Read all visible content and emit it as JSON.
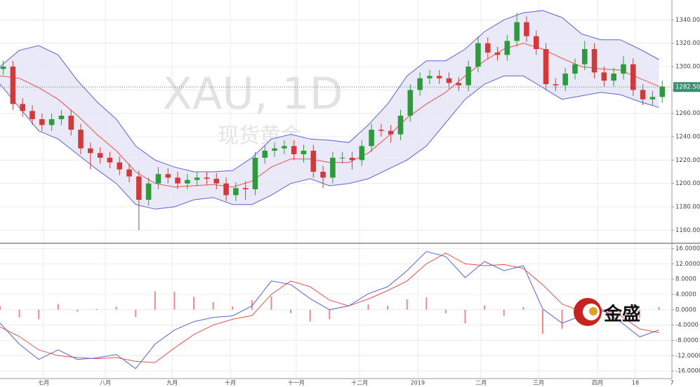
{
  "chart_data": [
    {
      "type": "candlestick",
      "title": "XAU, 1D",
      "subtitle": "现货黄金",
      "x": [
        1,
        4,
        7,
        10,
        13,
        16,
        19,
        22,
        25,
        28,
        31,
        34,
        37,
        40,
        43,
        46,
        49,
        52,
        55,
        58,
        61,
        64,
        67,
        70,
        73,
        76,
        79,
        82,
        85,
        88,
        91,
        94,
        97,
        100,
        103,
        106,
        109,
        112,
        115,
        118,
        121,
        124,
        127,
        130,
        133,
        136,
        139,
        142,
        145,
        148,
        151,
        154,
        157,
        160,
        163,
        166,
        169,
        172,
        175,
        178,
        181,
        184,
        187,
        190,
        193,
        196,
        199,
        202,
        205
      ],
      "open": [
        1298,
        1300,
        1268,
        1262,
        1255,
        1250,
        1255,
        1258,
        1246,
        1230,
        1226,
        1222,
        1218,
        1212,
        1206,
        1186,
        1200,
        1208,
        1205,
        1200,
        1203,
        1205,
        1204,
        1200,
        1190,
        1196,
        1195,
        1222,
        1228,
        1230,
        1232,
        1225,
        1228,
        1210,
        1205,
        1222,
        1222,
        1220,
        1232,
        1246,
        1245,
        1242,
        1258,
        1280,
        1290,
        1292,
        1290,
        1286,
        1284,
        1300,
        1320,
        1312,
        1310,
        1322,
        1338,
        1326,
        1315,
        1285,
        1284,
        1294,
        1302,
        1315,
        1295,
        1288,
        1294,
        1302,
        1280,
        1272,
        1274
      ],
      "high": [
        1305,
        1305,
        1273,
        1267,
        1260,
        1260,
        1263,
        1263,
        1251,
        1235,
        1231,
        1227,
        1223,
        1217,
        1211,
        1205,
        1214,
        1213,
        1210,
        1208,
        1210,
        1210,
        1209,
        1205,
        1201,
        1202,
        1227,
        1233,
        1235,
        1237,
        1237,
        1233,
        1233,
        1215,
        1227,
        1227,
        1227,
        1237,
        1251,
        1251,
        1250,
        1263,
        1285,
        1295,
        1297,
        1297,
        1295,
        1291,
        1305,
        1326,
        1325,
        1317,
        1327,
        1346,
        1343,
        1331,
        1320,
        1290,
        1299,
        1307,
        1322,
        1320,
        1300,
        1299,
        1309,
        1307,
        1285,
        1279,
        1288
      ],
      "low": [
        1293,
        1263,
        1257,
        1250,
        1245,
        1245,
        1250,
        1241,
        1225,
        1212,
        1217,
        1213,
        1207,
        1201,
        1160,
        1181,
        1195,
        1200,
        1195,
        1195,
        1198,
        1199,
        1195,
        1185,
        1185,
        1186,
        1190,
        1217,
        1223,
        1225,
        1220,
        1218,
        1205,
        1196,
        1200,
        1217,
        1212,
        1215,
        1227,
        1240,
        1235,
        1237,
        1253,
        1275,
        1285,
        1285,
        1281,
        1279,
        1279,
        1295,
        1307,
        1305,
        1305,
        1317,
        1321,
        1310,
        1280,
        1279,
        1279,
        1289,
        1297,
        1290,
        1283,
        1283,
        1289,
        1275,
        1267,
        1267,
        1269
      ],
      "close": [
        1300,
        1268,
        1262,
        1255,
        1250,
        1255,
        1258,
        1246,
        1230,
        1226,
        1222,
        1218,
        1212,
        1206,
        1186,
        1200,
        1208,
        1205,
        1200,
        1203,
        1205,
        1204,
        1200,
        1190,
        1196,
        1195,
        1222,
        1228,
        1230,
        1232,
        1225,
        1228,
        1210,
        1205,
        1222,
        1222,
        1220,
        1232,
        1246,
        1245,
        1242,
        1258,
        1280,
        1290,
        1292,
        1290,
        1286,
        1284,
        1300,
        1320,
        1312,
        1310,
        1322,
        1338,
        1326,
        1315,
        1285,
        1284,
        1294,
        1302,
        1315,
        1295,
        1288,
        1294,
        1302,
        1280,
        1272,
        1274,
        1283
      ],
      "up_color": "#2e9a3e",
      "down_color": "#d23a3a",
      "bands": {
        "x": [
          0,
          6,
          12,
          18,
          24,
          30,
          36,
          42,
          48,
          54,
          60,
          66,
          72,
          78,
          84,
          90,
          96,
          102,
          108,
          114,
          120,
          126,
          132,
          138,
          144,
          150,
          156,
          162,
          168,
          174,
          180,
          186,
          192,
          198,
          204
        ],
        "upper": [
          1300,
          1314,
          1318,
          1310,
          1288,
          1270,
          1255,
          1232,
          1220,
          1214,
          1210,
          1210,
          1211,
          1222,
          1238,
          1242,
          1238,
          1237,
          1235,
          1250,
          1268,
          1292,
          1305,
          1305,
          1315,
          1330,
          1340,
          1346,
          1348,
          1342,
          1328,
          1323,
          1323,
          1315,
          1306
        ],
        "middle": [
          1292,
          1290,
          1282,
          1272,
          1258,
          1242,
          1228,
          1210,
          1200,
          1197,
          1198,
          1199,
          1197,
          1202,
          1214,
          1221,
          1221,
          1218,
          1218,
          1226,
          1240,
          1256,
          1268,
          1278,
          1292,
          1305,
          1315,
          1320,
          1315,
          1307,
          1300,
          1298,
          1297,
          1290,
          1283
        ],
        "lower": [
          1285,
          1265,
          1245,
          1238,
          1225,
          1212,
          1200,
          1182,
          1178,
          1180,
          1186,
          1188,
          1182,
          1182,
          1190,
          1200,
          1204,
          1198,
          1200,
          1204,
          1212,
          1220,
          1232,
          1252,
          1272,
          1285,
          1292,
          1292,
          1282,
          1272,
          1275,
          1278,
          1276,
          1270,
          1265
        ],
        "band_color": "#5b63d6",
        "fill_color": "#e3e4f6",
        "middle_color": "#e8504a"
      },
      "last_price": {
        "value": 1282.5,
        "label": "1282.50"
      },
      "last_price_color": "#3d8f74",
      "xlim": [
        0,
        208
      ],
      "ylim": [
        1150,
        1357
      ],
      "yticks": [
        {
          "value": 1160,
          "label": "1160.00"
        },
        {
          "value": 1180,
          "label": "1180.00"
        },
        {
          "value": 1200,
          "label": "1200.00"
        },
        {
          "value": 1220,
          "label": "1220.00"
        },
        {
          "value": 1240,
          "label": "1240.00"
        },
        {
          "value": 1260,
          "label": "1260.00"
        },
        {
          "value": 1280,
          "label": "1280.00"
        },
        {
          "value": 1300,
          "label": "1300.00"
        },
        {
          "value": 1320,
          "label": "1320.00"
        },
        {
          "value": 1340,
          "label": "1340.00"
        }
      ],
      "grid": true
    },
    {
      "type": "macd",
      "x": [
        0,
        6,
        12,
        18,
        24,
        30,
        36,
        42,
        48,
        54,
        60,
        66,
        72,
        78,
        84,
        90,
        96,
        102,
        108,
        114,
        120,
        126,
        132,
        138,
        144,
        150,
        156,
        162,
        168,
        174,
        180,
        186,
        192,
        198,
        204
      ],
      "macd": [
        -3.5,
        -9,
        -13,
        -10.5,
        -13,
        -12.6,
        -11.7,
        -15.4,
        -9,
        -5.3,
        -3.1,
        -2,
        -1.6,
        1,
        7.5,
        6.6,
        2.9,
        0,
        1,
        4.2,
        6,
        10.2,
        15.2,
        13.9,
        8.4,
        12.6,
        10.2,
        11.5,
        0.2,
        -3.5,
        -1.6,
        0.2,
        -3.1,
        -7.1,
        -5.3
      ],
      "signal": [
        -4.5,
        -7,
        -10.5,
        -12,
        -12.5,
        -12.8,
        -12.5,
        -13.5,
        -13.8,
        -10,
        -6.5,
        -4,
        -2.5,
        -1.5,
        4,
        7.5,
        6,
        2.5,
        1,
        2.8,
        5,
        7.5,
        12,
        14.8,
        12,
        11.5,
        11.8,
        10.8,
        6.5,
        1.5,
        -0.5,
        -0.3,
        -1.5,
        -5,
        -6
      ],
      "histogram": [
        1,
        -2,
        -2.5,
        1.5,
        -0.5,
        0.2,
        0.8,
        -1.9,
        4.8,
        4.7,
        3.4,
        2,
        0.9,
        2.5,
        3.5,
        -0.9,
        -3.1,
        -2.5,
        0,
        1.4,
        1,
        2.7,
        3.2,
        -0.9,
        -3.6,
        1.1,
        -1.6,
        0.7,
        -6.3,
        -5,
        -1.1,
        0.5,
        -1.6,
        -2.1,
        0.7
      ],
      "macd_color": "#5b63d6",
      "signal_color": "#e8504a",
      "histogram_color": "#f08a8a",
      "xlim": [
        0,
        208
      ],
      "ylim": [
        -18,
        17
      ],
      "yticks": [
        {
          "value": -16,
          "label": "-16.0000"
        },
        {
          "value": -12,
          "label": "-12.0000"
        },
        {
          "value": -8,
          "label": "-8.0000"
        },
        {
          "value": -4,
          "label": "-4.0000"
        },
        {
          "value": 0,
          "label": "0.0000"
        },
        {
          "value": 4,
          "label": "4.0000"
        },
        {
          "value": 8,
          "label": "8.0000"
        },
        {
          "value": 12,
          "label": "12.0000"
        },
        {
          "value": 16,
          "label": "16.0000"
        }
      ],
      "xticks": [
        {
          "value": 13.5,
          "label": "七月"
        },
        {
          "value": 32.6,
          "label": "八月"
        },
        {
          "value": 53.3,
          "label": "九月"
        },
        {
          "value": 71.3,
          "label": "十月"
        },
        {
          "value": 91.7,
          "label": "十一月"
        },
        {
          "value": 111.3,
          "label": "十二月"
        },
        {
          "value": 129.3,
          "label": "2019"
        },
        {
          "value": 148.9,
          "label": "二月"
        },
        {
          "value": 166.7,
          "label": "三月"
        },
        {
          "value": 185,
          "label": "四月"
        },
        {
          "value": 196.7,
          "label": "18"
        },
        {
          "value": 208,
          "label": "7"
        }
      ],
      "grid": true
    }
  ],
  "logo": {
    "text": "金盛"
  }
}
